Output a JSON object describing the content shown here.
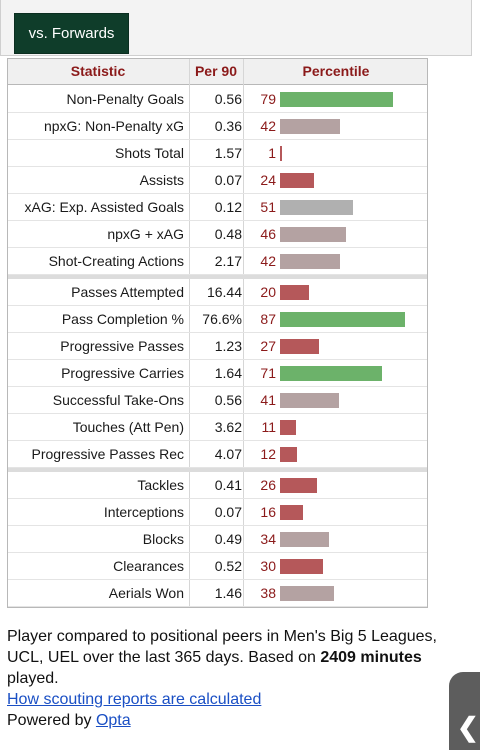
{
  "tab": {
    "label": "vs. Forwards"
  },
  "headers": {
    "statistic": "Statistic",
    "per90": "Per 90",
    "percentile": "Percentile"
  },
  "colors": {
    "green": "#6cb26a",
    "mauve": "#b4a2a2",
    "red": "#b5585a",
    "gray": "#b0b0b0"
  },
  "sections": [
    [
      {
        "stat": "Non-Penalty Goals",
        "per90": "0.56",
        "pct": "79",
        "color": "green"
      },
      {
        "stat": "npxG: Non-Penalty xG",
        "per90": "0.36",
        "pct": "42",
        "color": "mauve"
      },
      {
        "stat": "Shots Total",
        "per90": "1.57",
        "pct": "1",
        "color": "red"
      },
      {
        "stat": "Assists",
        "per90": "0.07",
        "pct": "24",
        "color": "red"
      },
      {
        "stat": "xAG: Exp. Assisted Goals",
        "per90": "0.12",
        "pct": "51",
        "color": "gray"
      },
      {
        "stat": "npxG + xAG",
        "per90": "0.48",
        "pct": "46",
        "color": "mauve"
      },
      {
        "stat": "Shot-Creating Actions",
        "per90": "2.17",
        "pct": "42",
        "color": "mauve"
      }
    ],
    [
      {
        "stat": "Passes Attempted",
        "per90": "16.44",
        "pct": "20",
        "color": "red"
      },
      {
        "stat": "Pass Completion %",
        "per90": "76.6%",
        "pct": "87",
        "color": "green"
      },
      {
        "stat": "Progressive Passes",
        "per90": "1.23",
        "pct": "27",
        "color": "red"
      },
      {
        "stat": "Progressive Carries",
        "per90": "1.64",
        "pct": "71",
        "color": "green"
      },
      {
        "stat": "Successful Take-Ons",
        "per90": "0.56",
        "pct": "41",
        "color": "mauve"
      },
      {
        "stat": "Touches (Att Pen)",
        "per90": "3.62",
        "pct": "11",
        "color": "red"
      },
      {
        "stat": "Progressive Passes Rec",
        "per90": "4.07",
        "pct": "12",
        "color": "red"
      }
    ],
    [
      {
        "stat": "Tackles",
        "per90": "0.41",
        "pct": "26",
        "color": "red"
      },
      {
        "stat": "Interceptions",
        "per90": "0.07",
        "pct": "16",
        "color": "red"
      },
      {
        "stat": "Blocks",
        "per90": "0.49",
        "pct": "34",
        "color": "mauve"
      },
      {
        "stat": "Clearances",
        "per90": "0.52",
        "pct": "30",
        "color": "red"
      },
      {
        "stat": "Aerials Won",
        "per90": "1.46",
        "pct": "38",
        "color": "mauve"
      }
    ]
  ],
  "footer": {
    "text_before": "Player compared to positional peers in Men's Big 5 Leagues, UCL, UEL over the last 365 days. Based on ",
    "minutes_bold": "2409 minutes",
    "text_after": " played.",
    "link_scouting": "How scouting reports are calculated",
    "powered_by": "Powered by ",
    "link_opta": "Opta"
  },
  "back_handle": {
    "icon": "chevron-left-icon",
    "glyph": "❮"
  }
}
